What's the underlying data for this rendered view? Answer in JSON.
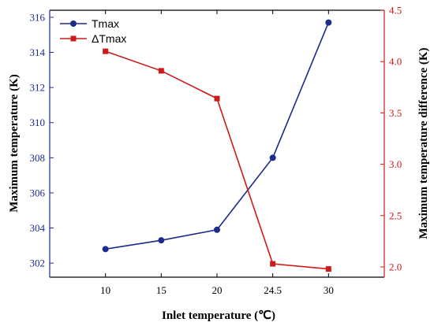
{
  "chart_data": {
    "type": "line",
    "xlabel": "Inlet temperature (℃)",
    "ylabel_left": "Maximum temperature (K)",
    "ylabel_right": "Maximum temperature difference (K)",
    "categories": [
      "10",
      "15",
      "20",
      "24.5",
      "30"
    ],
    "ylim_left": [
      301.2,
      316.4
    ],
    "ylim_right": [
      1.9,
      4.5
    ],
    "yticks_left": [
      302,
      304,
      306,
      308,
      310,
      312,
      314,
      316
    ],
    "yticks_right": [
      "2.0",
      "2.5",
      "3.0",
      "3.5",
      "4.0",
      "4.5"
    ],
    "legend_position": "top-left",
    "grid": false,
    "series": [
      {
        "name": "Tmax",
        "axis": "left",
        "color": "#1c2b8c",
        "marker": "circle",
        "values": [
          302.8,
          303.3,
          303.9,
          308.0,
          315.7
        ]
      },
      {
        "name": "ΔTmax",
        "axis": "right",
        "color": "#cc1a1a",
        "marker": "square",
        "values": [
          4.1,
          3.91,
          3.64,
          2.03,
          1.98
        ]
      }
    ]
  }
}
